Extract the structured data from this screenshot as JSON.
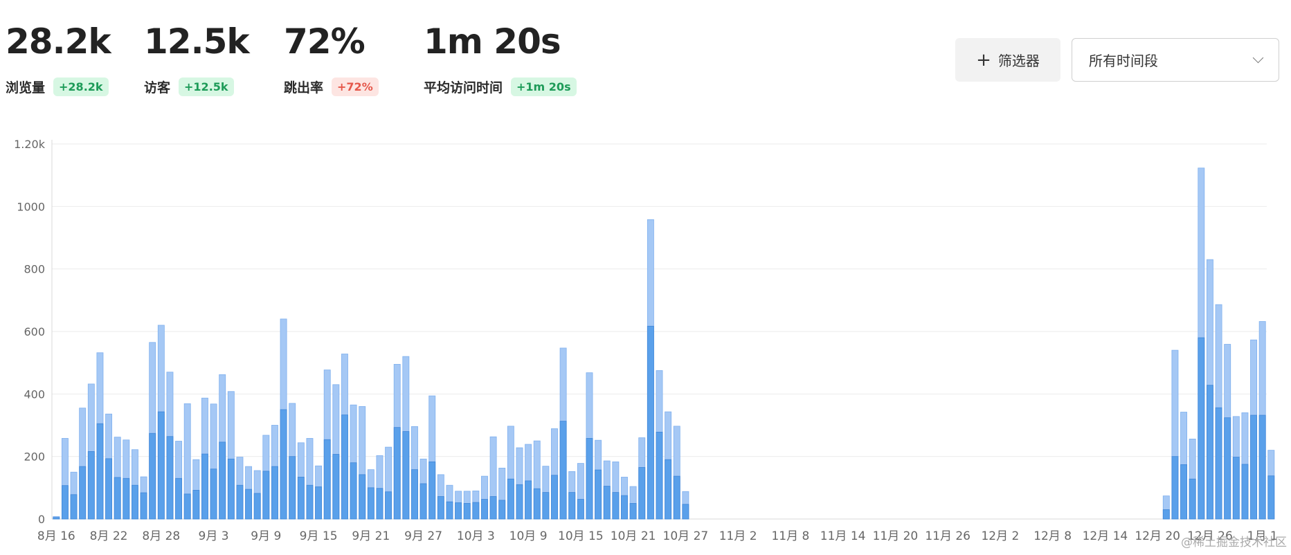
{
  "stats": [
    {
      "value": "28.2k",
      "label": "浏览量",
      "change": "+28.2k",
      "trend": "positive"
    },
    {
      "value": "12.5k",
      "label": "访客",
      "change": "+12.5k",
      "trend": "positive"
    },
    {
      "value": "72%",
      "label": "跳出率",
      "change": "+72%",
      "trend": "negative"
    },
    {
      "value": "1m 20s",
      "label": "平均访问时间",
      "change": "+1m 20s",
      "trend": "positive"
    }
  ],
  "toolbar": {
    "filter_label": "筛选器",
    "filter_icon": "plus-icon",
    "period_selected": "所有时间段",
    "period_icon": "chevron-down-icon"
  },
  "watermark": "@稀土掘金技术社区",
  "colors": {
    "views": "#a5c8f5",
    "views_border": "#7fb0ee",
    "visitors": "#5aa0ea",
    "visitors_border": "#3f86d8",
    "badge_positive_bg": "#d7f7e3",
    "badge_positive_fg": "#1d9b58",
    "badge_negative_bg": "#fde5e2",
    "badge_negative_fg": "#e5574a"
  },
  "chart_data": {
    "type": "bar",
    "stacked": "overlay",
    "y_tick_labels": [
      "0",
      "200",
      "400",
      "600",
      "800",
      "1000",
      "1.20k"
    ],
    "ylim": [
      0,
      1200
    ],
    "grid": true,
    "x_tick_labels": [
      "8月 16",
      "8月 22",
      "8月 28",
      "9月 3",
      "9月 9",
      "9月 15",
      "9月 21",
      "9月 27",
      "10月 3",
      "10月 9",
      "10月 15",
      "10月 21",
      "10月 27",
      "11月 2",
      "11月 8",
      "11月 14",
      "11月 20",
      "11月 26",
      "12月 2",
      "12月 8",
      "12月 14",
      "12月 20",
      "12月 26",
      "1月 1"
    ],
    "series": [
      {
        "values_segments": [
          {
            "start_day": 0,
            "values": [
              8,
              258,
              150,
              355,
              432,
              532,
              336,
              262,
              253,
              222,
              135,
              565,
              620,
              470,
              249,
              369,
              190,
              387,
              368,
              462,
              408,
              198,
              168,
              155,
              268,
              300,
              640,
              370,
              244,
              258,
              170,
              477,
              430,
              528,
              365,
              360,
              158,
              203,
              230,
              495,
              520,
              296,
              192,
              394,
              142,
              108,
              89,
              89,
              90,
              137,
              263,
              163,
              297,
              228,
              239,
              250,
              169,
              289,
              547,
              152,
              178,
              468,
              252,
              186,
              183,
              134,
              104,
              260,
              958,
              475,
              343,
              297,
              88
            ]
          },
          {
            "start_day": 127,
            "values": [
              74,
              540,
              342,
              256,
              1123,
              830,
              686,
              559,
              328,
              340,
              573,
              632,
              220
            ]
          }
        ]
      },
      {
        "values_segments": [
          {
            "start_day": 0,
            "values": [
              5,
              107,
              78,
              168,
              216,
              305,
              193,
              133,
              130,
              108,
              84,
              274,
              343,
              264,
              130,
              80,
              92,
              208,
              160,
              246,
              192,
              108,
              95,
              82,
              153,
              168,
              350,
              200,
              134,
              108,
              103,
              254,
              207,
              333,
              180,
              142,
              100,
              98,
              87,
              293,
              280,
              158,
              113,
              183,
              72,
              55,
              52,
              50,
              53,
              63,
              72,
              60,
              128,
              110,
              122,
              97,
              85,
              140,
              313,
              85,
              63,
              258,
              157,
              105,
              85,
              75,
              50,
              165,
              617,
              278,
              190,
              137,
              47
            ]
          },
          {
            "start_day": 127,
            "values": [
              30,
              200,
              174,
              128,
              580,
              428,
              356,
              324,
              198,
              175,
              332,
              332,
              138
            ]
          }
        ]
      }
    ]
  }
}
